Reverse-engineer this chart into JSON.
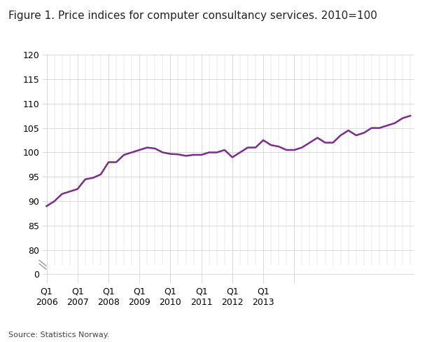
{
  "title": "Figure 1. Price indices for computer consultancy services. 2010=100",
  "source": "Source: Statistics Norway.",
  "line_color": "#7B2D8B",
  "line_width": 1.8,
  "background_color": "#ffffff",
  "grid_color": "#cccccc",
  "values": [
    89.0,
    90.0,
    91.5,
    92.0,
    92.5,
    94.5,
    94.8,
    95.5,
    98.0,
    98.0,
    99.5,
    100.0,
    100.5,
    101.0,
    100.8,
    100.0,
    99.7,
    99.6,
    99.3,
    99.5,
    99.5,
    100.0,
    100.0,
    100.5,
    99.0,
    100.0,
    101.0,
    101.0,
    102.5,
    101.5,
    101.2,
    100.5,
    100.5,
    101.0,
    102.0,
    103.0,
    102.0,
    102.0,
    103.5,
    104.5,
    103.5,
    104.0,
    105.0,
    105.0,
    105.5,
    106.0,
    107.0,
    107.5
  ],
  "x_major_ticks": [
    0,
    4,
    8,
    12,
    16,
    20,
    24,
    28,
    32
  ],
  "x_labels": [
    "Q1\n2006",
    "Q1\n2007",
    "Q1\n2008",
    "Q1\n2009",
    "Q1\n2010",
    "Q1\n2011",
    "Q1\n2012",
    "Q1\n2013",
    ""
  ],
  "yticks_upper": [
    80,
    85,
    90,
    95,
    100,
    105,
    110,
    115,
    120
  ],
  "ylim_upper": [
    77,
    120
  ],
  "title_fontsize": 11,
  "tick_fontsize": 9,
  "source_fontsize": 8
}
